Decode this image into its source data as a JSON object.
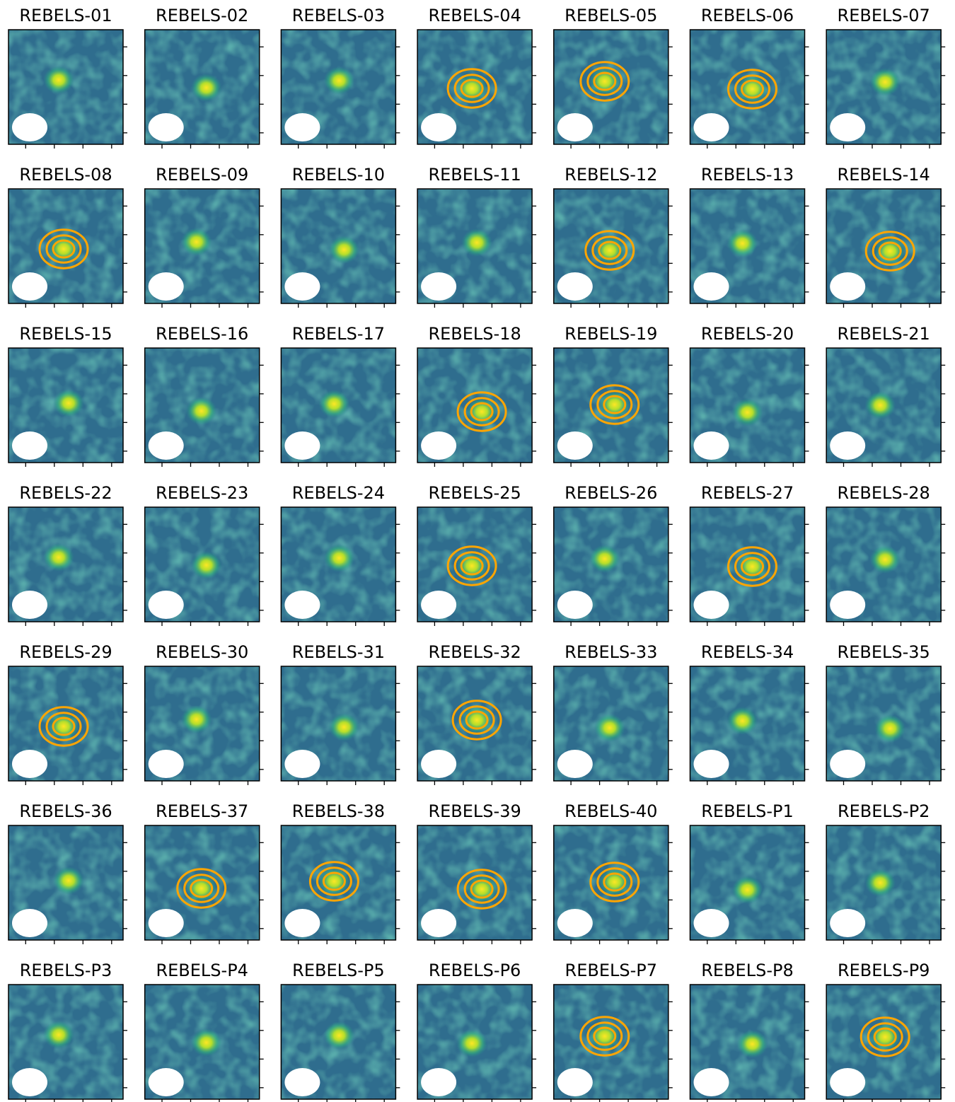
{
  "panels": [
    {
      "title": "REBELS-01"
    },
    {
      "title": "REBELS-02"
    },
    {
      "title": "REBELS-03"
    },
    {
      "title": "REBELS-04"
    },
    {
      "title": "REBELS-05"
    },
    {
      "title": "REBELS-06"
    },
    {
      "title": "REBELS-07"
    },
    {
      "title": "REBELS-08"
    },
    {
      "title": "REBELS-09"
    },
    {
      "title": "REBELS-10"
    },
    {
      "title": "REBELS-11"
    },
    {
      "title": "REBELS-12"
    },
    {
      "title": "REBELS-13"
    },
    {
      "title": "REBELS-14"
    },
    {
      "title": "REBELS-15"
    },
    {
      "title": "REBELS-16"
    },
    {
      "title": "REBELS-17"
    },
    {
      "title": "REBELS-18"
    },
    {
      "title": "REBELS-19"
    },
    {
      "title": "REBELS-20"
    },
    {
      "title": "REBELS-21"
    },
    {
      "title": "REBELS-22"
    },
    {
      "title": "REBELS-23"
    },
    {
      "title": "REBELS-24"
    },
    {
      "title": "REBELS-25"
    },
    {
      "title": "REBELS-26"
    },
    {
      "title": "REBELS-27"
    },
    {
      "title": "REBELS-28"
    },
    {
      "title": "REBELS-29"
    },
    {
      "title": "REBELS-30"
    },
    {
      "title": "REBELS-31"
    },
    {
      "title": "REBELS-32"
    },
    {
      "title": "REBELS-33"
    },
    {
      "title": "REBELS-34"
    },
    {
      "title": "REBELS-35"
    },
    {
      "title": "REBELS-36"
    },
    {
      "title": "REBELS-37"
    },
    {
      "title": "REBELS-38"
    },
    {
      "title": "REBELS-39"
    },
    {
      "title": "REBELS-40"
    },
    {
      "title": "REBELS-P1"
    },
    {
      "title": "REBELS-P2"
    },
    {
      "title": "REBELS-P3"
    },
    {
      "title": "REBELS-P4"
    },
    {
      "title": "REBELS-P5"
    },
    {
      "title": "REBELS-P6"
    },
    {
      "title": "REBELS-P7"
    },
    {
      "title": "REBELS-P8"
    },
    {
      "title": "REBELS-P9"
    }
  ]
}
